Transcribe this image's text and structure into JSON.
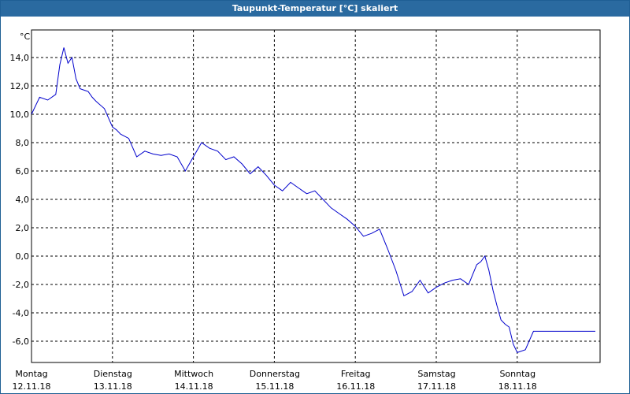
{
  "window": {
    "title": "Taupunkt-Temperatur [°C] skaliert"
  },
  "chart_data": {
    "type": "line",
    "title": "Taupunkt-Temperatur [°C] skaliert",
    "ylabel": "°C",
    "xlabel": "",
    "ylim": [
      -7.0,
      15.5
    ],
    "y_ticks": [
      "14,0",
      "12,0",
      "10,0",
      "8,0",
      "6,0",
      "4,0",
      "2,0",
      "0,0",
      "-2,0",
      "-4,0",
      "-6,0"
    ],
    "y_tick_values": [
      14,
      12,
      10,
      8,
      6,
      4,
      2,
      0,
      -2,
      -4,
      -6
    ],
    "x_days": [
      {
        "day": "Montag",
        "date": "12.11.18"
      },
      {
        "day": "Dienstag",
        "date": "13.11.18"
      },
      {
        "day": "Mittwoch",
        "date": "14.11.18"
      },
      {
        "day": "Donnerstag",
        "date": "15.11.18"
      },
      {
        "day": "Freitag",
        "date": "16.11.18"
      },
      {
        "day": "Samstag",
        "date": "17.11.18"
      },
      {
        "day": "Sonntag",
        "date": "18.11.18"
      }
    ],
    "grid": true,
    "line_color": "#0000cc",
    "series": [
      {
        "name": "",
        "x_days": [
          0.0,
          0.1,
          0.2,
          0.3,
          0.35,
          0.4,
          0.45,
          0.5,
          0.55,
          0.6,
          0.65,
          0.7,
          0.75,
          0.8,
          0.9,
          1.0,
          1.05,
          1.1,
          1.2,
          1.3,
          1.4,
          1.5,
          1.6,
          1.7,
          1.8,
          1.9,
          2.0,
          2.1,
          2.2,
          2.3,
          2.4,
          2.5,
          2.6,
          2.7,
          2.8,
          2.9,
          3.0,
          3.1,
          3.2,
          3.3,
          3.4,
          3.5,
          3.6,
          3.7,
          3.8,
          3.9,
          4.0,
          4.1,
          4.2,
          4.3,
          4.4,
          4.5,
          4.6,
          4.7,
          4.8,
          4.9,
          5.0,
          5.1,
          5.2,
          5.3,
          5.4,
          5.5,
          5.55,
          5.6,
          5.65,
          5.7,
          5.75,
          5.8,
          5.85,
          5.9,
          5.95,
          6.0,
          6.1,
          6.2,
          6.3,
          6.35,
          6.4,
          6.45,
          6.5,
          6.55,
          6.6,
          6.65,
          6.7,
          6.75,
          6.8,
          6.85,
          6.9,
          6.95,
          7.0
        ],
        "values": [
          10.0,
          11.2,
          11.0,
          11.4,
          13.5,
          14.7,
          13.6,
          14.0,
          12.5,
          11.8,
          11.7,
          11.6,
          11.2,
          10.9,
          10.4,
          9.1,
          8.9,
          8.6,
          8.3,
          7.0,
          7.4,
          7.2,
          7.1,
          7.2,
          7.0,
          6.0,
          7.0,
          8.0,
          7.6,
          7.4,
          6.8,
          7.0,
          6.5,
          5.8,
          6.3,
          5.7,
          5.0,
          4.6,
          5.2,
          4.8,
          4.4,
          4.6,
          4.0,
          3.4,
          3.0,
          2.6,
          2.1,
          1.4,
          1.6,
          1.9,
          0.5,
          -1.0,
          -2.8,
          -2.5,
          -1.7,
          -2.6,
          -2.2,
          -1.9,
          -1.7,
          -1.6,
          -2.0,
          -0.6,
          -0.4,
          0.0,
          -1.0,
          -2.4,
          -3.5,
          -4.5,
          -4.8,
          -5.0,
          -6.2,
          -6.8,
          -6.6,
          -5.3,
          -5.3,
          -5.3,
          -5.3,
          -5.3,
          -5.3,
          -5.3,
          -5.3,
          -5.3,
          -5.3,
          -5.3,
          -5.3,
          -5.3,
          -5.3,
          -5.3,
          -5.3
        ]
      }
    ]
  }
}
